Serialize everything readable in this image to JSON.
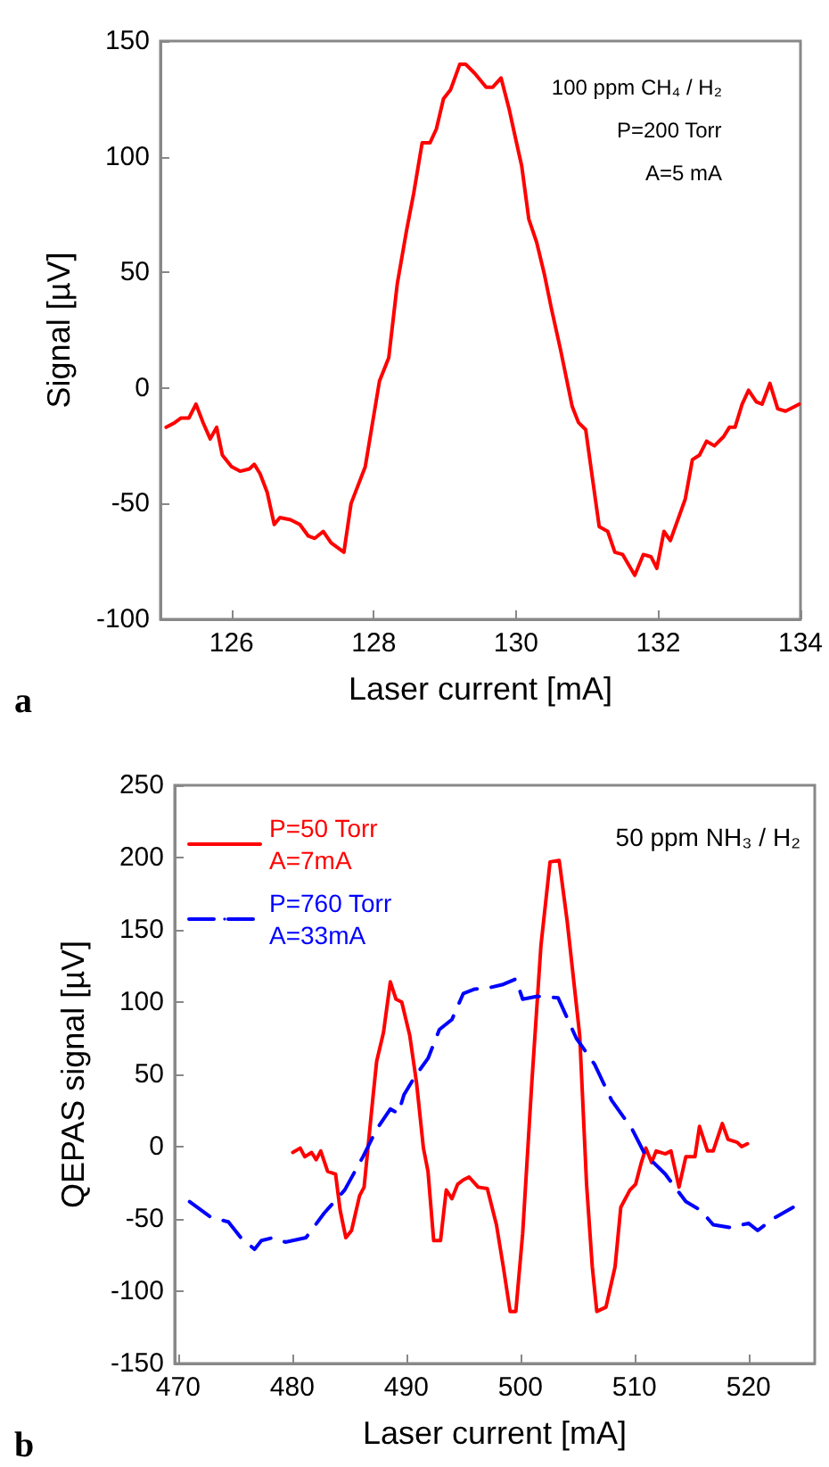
{
  "chart_data": [
    {
      "type": "line",
      "xlabel": "Laser current [mA]",
      "ylabel": "Signal [µV]",
      "xlim": [
        125,
        134
      ],
      "ylim": [
        -100,
        150
      ],
      "xticks": [
        126,
        128,
        130,
        132,
        134
      ],
      "yticks": [
        -100,
        -50,
        0,
        50,
        100,
        150
      ],
      "grid": false,
      "legend": false,
      "marker": "none",
      "line_style": "solid",
      "annotations": [
        "100 ppm CH₄ / H₂",
        "P=200 Torr",
        "A=5 mA",
        "a"
      ],
      "series": [
        {
          "color": "#ff0000",
          "x": [
            125.08,
            125.2,
            125.29,
            125.4,
            125.5,
            125.6,
            125.7,
            125.79,
            125.87,
            126.0,
            126.12,
            126.25,
            126.32,
            126.4,
            126.5,
            126.6,
            126.68,
            126.83,
            126.96,
            127.08,
            127.17,
            127.29,
            127.4,
            127.58,
            127.68,
            127.88,
            128.08,
            128.21,
            128.33,
            128.46,
            128.56,
            128.68,
            128.79,
            128.88,
            128.98,
            129.08,
            129.21,
            129.29,
            129.42,
            129.58,
            129.67,
            129.79,
            129.9,
            130.0,
            130.08,
            130.18,
            130.29,
            130.4,
            130.5,
            130.63,
            130.79,
            130.88,
            130.98,
            131.07,
            131.17,
            131.29,
            131.39,
            131.5,
            131.67,
            131.79,
            131.9,
            131.98,
            132.08,
            132.17,
            132.38,
            132.48,
            132.58,
            132.68,
            132.79,
            132.92,
            133.0,
            133.08,
            133.18,
            133.27,
            133.38,
            133.46,
            133.57,
            133.68,
            133.79,
            133.92,
            133.98
          ],
          "values": [
            -17,
            -15,
            -13,
            -13,
            -7,
            -15,
            -22,
            -17,
            -29,
            -34,
            -36,
            -35,
            -33,
            -37,
            -45,
            -59,
            -56,
            -57,
            -59,
            -64,
            -65,
            -62,
            -67,
            -71,
            -50,
            -34,
            3,
            13,
            45,
            68,
            84,
            106,
            106,
            112,
            125,
            129,
            140,
            140,
            136,
            130,
            130,
            134,
            121,
            107,
            96,
            73,
            63,
            49,
            34,
            16,
            -8,
            -15,
            -18,
            -38,
            -60,
            -62,
            -71,
            -72,
            -81,
            -72,
            -73,
            -78,
            -62,
            -66,
            -48,
            -31,
            -29,
            -23,
            -25,
            -21,
            -17,
            -17,
            -7,
            -1,
            -6,
            -7,
            2,
            -9,
            -10,
            -8,
            -7
          ]
        }
      ]
    },
    {
      "type": "line",
      "xlabel": "Laser current [mA]",
      "ylabel": "QEPAS signal [µV]",
      "xlim": [
        469.7,
        525.8
      ],
      "ylim": [
        -150,
        250
      ],
      "xticks": [
        470,
        480,
        490,
        500,
        510,
        520
      ],
      "yticks": [
        -150,
        -100,
        -50,
        0,
        50,
        100,
        150,
        200,
        250
      ],
      "grid": false,
      "legend": "top left",
      "marker": "none",
      "annotations": [
        "50 ppm NH₃ / H₂",
        "b"
      ],
      "series": [
        {
          "name": "P=50 Torr\nA=7mA",
          "color": "#ff0000",
          "line_style": "solid",
          "x": [
            480.05,
            480.7,
            481.1,
            481.7,
            482.1,
            482.5,
            483.1,
            483.8,
            484.2,
            484.7,
            485.2,
            485.9,
            486.3,
            487.1,
            487.4,
            488.0,
            488.6,
            489.1,
            489.6,
            490.3,
            490.9,
            491.5,
            491.9,
            492.4,
            493.0,
            493.5,
            494.0,
            494.5,
            495.0,
            495.5,
            496.3,
            497.1,
            497.9,
            498.5,
            499.1,
            499.6,
            500.2,
            501.0,
            501.8,
            502.6,
            503.4,
            504.1,
            505.2,
            505.8,
            506.3,
            506.7,
            507.5,
            508.3,
            508.8,
            509.6,
            510.1,
            510.6,
            511.0,
            511.5,
            511.9,
            512.7,
            513.2,
            513.9,
            514.5,
            515.3,
            515.7,
            516.4,
            516.9,
            517.7,
            518.2,
            519.0,
            519.4,
            519.9
          ],
          "values": [
            -4,
            -1,
            -7,
            -4,
            -9,
            -3,
            -17,
            -19,
            -44,
            -63,
            -58,
            -34,
            -28,
            36,
            59,
            79,
            114,
            102,
            100,
            77,
            44,
            -1,
            -17,
            -65,
            -65,
            -30,
            -36,
            -26,
            -23,
            -21,
            -28,
            -29,
            -54,
            -83,
            -114,
            -114,
            -60,
            44,
            139,
            197,
            198,
            156,
            77,
            -26,
            -83,
            -114,
            -111,
            -83,
            -42,
            -30,
            -26,
            -11,
            -1,
            -11,
            -3,
            -5,
            -3,
            -28,
            -7,
            -7,
            14,
            -3,
            -3,
            16,
            5,
            3,
            0,
            2
          ]
        },
        {
          "name": "P=760 Torr\nA=33mA",
          "color": "#0000ff",
          "line_style": "dashed",
          "x": [
            471.0,
            472.9,
            474.4,
            475.5,
            476.7,
            477.3,
            478.3,
            479.4,
            481.2,
            482.8,
            484.6,
            486.2,
            487.4,
            488.6,
            489.3,
            489.8,
            490.8,
            491.9,
            492.9,
            494.0,
            495.0,
            496.0,
            497.3,
            498.4,
            499.6,
            500.2,
            501.5,
            503.3,
            504.9,
            506.5,
            508.0,
            509.8,
            510.9,
            512.7,
            514.5,
            515.8,
            516.9,
            518.4,
            520.0,
            520.8,
            522.1,
            523.9
          ],
          "values": [
            -38,
            -49,
            -52,
            -63,
            -71,
            -65,
            -63,
            -66,
            -63,
            -46,
            -30,
            -7,
            12,
            26,
            23,
            36,
            49,
            61,
            81,
            88,
            106,
            109,
            110,
            112,
            116,
            102,
            104,
            103,
            75,
            57,
            32,
            12,
            -5,
            -19,
            -38,
            -44,
            -54,
            -56,
            -53,
            -58,
            -50,
            -42
          ]
        }
      ]
    }
  ]
}
